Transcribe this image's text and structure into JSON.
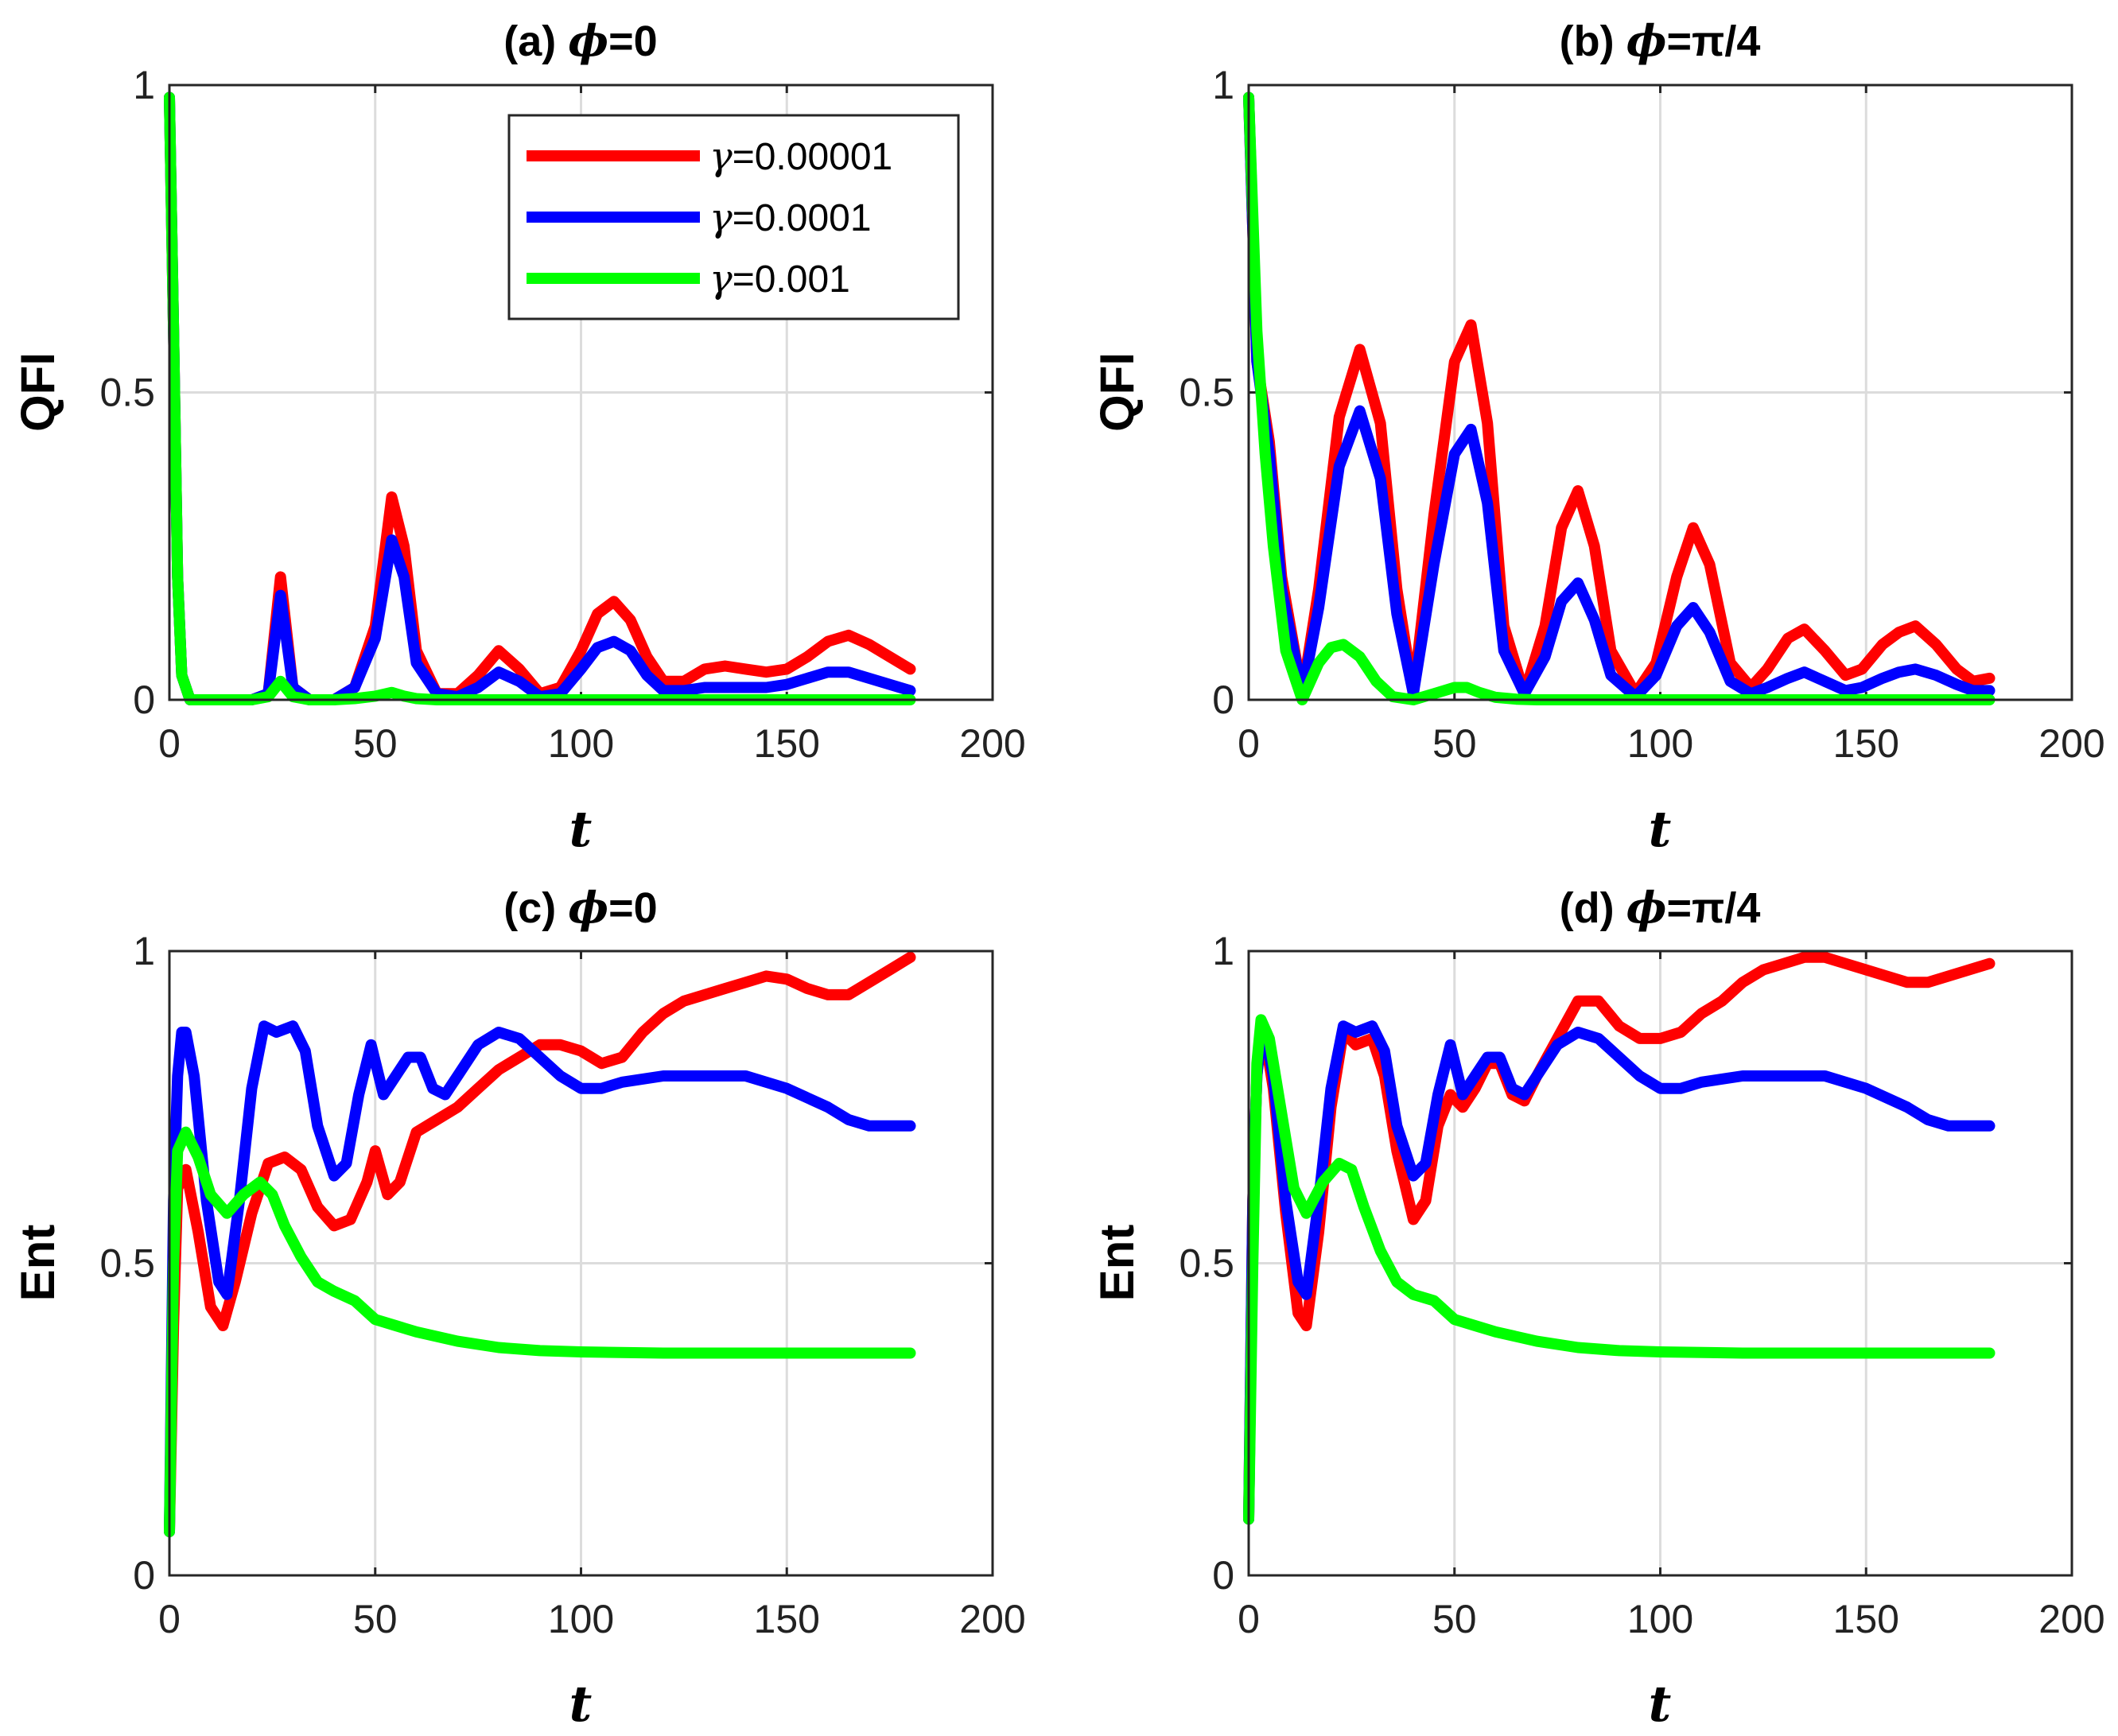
{
  "colors": {
    "red": "#ff0000",
    "blue": "#0000ff",
    "green": "#00ff00",
    "axis": "#262626",
    "grid": "#dcdcdc"
  },
  "legend": {
    "symbol": "γ",
    "entries": [
      "=0.00001",
      "=0.0001",
      "=0.001"
    ],
    "placement": "top-right of panel (a)"
  },
  "chart_data": [
    {
      "type": "line",
      "title_prefix": "(a) ",
      "title_symbol": "ϕ",
      "title_suffix": "=0",
      "xlabel": "t",
      "ylabel": "QFI",
      "xlim": [
        0,
        200
      ],
      "ylim": [
        0,
        1
      ],
      "xticks": [
        "0",
        "50",
        "100",
        "150",
        "200"
      ],
      "yticks": [
        "0",
        "0.5",
        "1"
      ],
      "grid": true,
      "series": [
        {
          "name": "γ=0.00001",
          "color": "red",
          "x": [
            0,
            1,
            2,
            3,
            5,
            10,
            20,
            24,
            27,
            30,
            34,
            40,
            45,
            50,
            54,
            57,
            60,
            65,
            70,
            75,
            80,
            85,
            90,
            95,
            100,
            104,
            108,
            112,
            116,
            120,
            125,
            130,
            135,
            140,
            145,
            150,
            155,
            160,
            165,
            170,
            175,
            180
          ],
          "y": [
            0.98,
            0.6,
            0.2,
            0.04,
            0,
            0,
            0,
            0.01,
            0.2,
            0.02,
            0,
            0,
            0.02,
            0.12,
            0.33,
            0.25,
            0.08,
            0.01,
            0.01,
            0.04,
            0.08,
            0.05,
            0.01,
            0.02,
            0.08,
            0.14,
            0.16,
            0.13,
            0.07,
            0.03,
            0.03,
            0.05,
            0.055,
            0.05,
            0.045,
            0.05,
            0.07,
            0.095,
            0.105,
            0.09,
            0.07,
            0.05
          ]
        },
        {
          "name": "γ=0.0001",
          "color": "blue",
          "x": [
            0,
            1,
            2,
            3,
            5,
            10,
            20,
            24,
            27,
            30,
            34,
            40,
            45,
            50,
            54,
            57,
            60,
            65,
            70,
            75,
            80,
            85,
            90,
            95,
            100,
            104,
            108,
            112,
            116,
            120,
            125,
            130,
            135,
            140,
            145,
            150,
            155,
            160,
            165,
            170,
            175,
            180
          ],
          "y": [
            0.98,
            0.6,
            0.2,
            0.04,
            0,
            0,
            0,
            0.01,
            0.17,
            0.02,
            0,
            0,
            0.02,
            0.1,
            0.26,
            0.2,
            0.06,
            0.01,
            0.005,
            0.02,
            0.045,
            0.03,
            0.005,
            0.01,
            0.05,
            0.085,
            0.095,
            0.08,
            0.04,
            0.015,
            0.015,
            0.02,
            0.02,
            0.02,
            0.02,
            0.025,
            0.035,
            0.045,
            0.045,
            0.035,
            0.025,
            0.015
          ]
        },
        {
          "name": "γ=0.001",
          "color": "green",
          "x": [
            0,
            1,
            2,
            3,
            5,
            10,
            20,
            24,
            27,
            30,
            34,
            40,
            45,
            50,
            54,
            57,
            60,
            65,
            70,
            100,
            150,
            180
          ],
          "y": [
            0.98,
            0.6,
            0.2,
            0.04,
            0,
            0,
            0,
            0.005,
            0.03,
            0.005,
            0,
            0,
            0.002,
            0.006,
            0.012,
            0.006,
            0.002,
            0,
            0,
            0,
            0,
            0
          ]
        }
      ]
    },
    {
      "type": "line",
      "title_prefix": "(b) ",
      "title_symbol": "ϕ",
      "title_suffix": "=π/4",
      "xlabel": "t",
      "ylabel": "QFI",
      "xlim": [
        0,
        200
      ],
      "ylim": [
        0,
        1
      ],
      "xticks": [
        "0",
        "50",
        "100",
        "150",
        "200"
      ],
      "yticks": [
        "0",
        "0.5",
        "1"
      ],
      "grid": true,
      "series": [
        {
          "name": "γ=0.00001",
          "color": "red",
          "x": [
            0,
            2,
            5,
            8,
            13,
            17,
            22,
            27,
            32,
            36,
            40,
            45,
            50,
            54,
            58,
            62,
            67,
            72,
            76,
            80,
            84,
            88,
            94,
            99,
            104,
            108,
            112,
            117,
            122,
            126,
            131,
            135,
            140,
            145,
            149,
            154,
            158,
            162,
            167,
            172,
            176,
            180
          ],
          "y": [
            0.98,
            0.55,
            0.42,
            0.2,
            0.01,
            0.18,
            0.46,
            0.57,
            0.45,
            0.18,
            0.01,
            0.3,
            0.55,
            0.61,
            0.45,
            0.12,
            0.01,
            0.12,
            0.28,
            0.34,
            0.25,
            0.08,
            0.01,
            0.06,
            0.2,
            0.28,
            0.22,
            0.06,
            0.02,
            0.05,
            0.1,
            0.115,
            0.08,
            0.04,
            0.05,
            0.09,
            0.11,
            0.12,
            0.09,
            0.05,
            0.03,
            0.035
          ]
        },
        {
          "name": "γ=0.0001",
          "color": "blue",
          "x": [
            0,
            2,
            5,
            8,
            13,
            17,
            22,
            27,
            32,
            36,
            40,
            45,
            50,
            54,
            58,
            62,
            67,
            72,
            76,
            80,
            84,
            88,
            94,
            99,
            104,
            108,
            112,
            117,
            122,
            126,
            131,
            135,
            140,
            145,
            149,
            154,
            158,
            162,
            167,
            172,
            176,
            180
          ],
          "y": [
            0.98,
            0.55,
            0.4,
            0.18,
            0.01,
            0.15,
            0.38,
            0.47,
            0.36,
            0.14,
            0.01,
            0.22,
            0.4,
            0.44,
            0.32,
            0.08,
            0.01,
            0.07,
            0.16,
            0.19,
            0.13,
            0.04,
            0.005,
            0.04,
            0.12,
            0.15,
            0.11,
            0.03,
            0.01,
            0.02,
            0.035,
            0.045,
            0.03,
            0.015,
            0.02,
            0.035,
            0.045,
            0.05,
            0.04,
            0.025,
            0.015,
            0.015
          ]
        },
        {
          "name": "γ=0.001",
          "color": "green",
          "x": [
            0,
            2,
            4,
            6,
            9,
            13,
            17,
            20,
            23,
            27,
            31,
            35,
            40,
            45,
            50,
            53,
            56,
            60,
            65,
            70,
            100,
            150,
            180
          ],
          "y": [
            0.98,
            0.6,
            0.4,
            0.25,
            0.08,
            0.0,
            0.06,
            0.085,
            0.09,
            0.07,
            0.03,
            0.005,
            0.0,
            0.01,
            0.02,
            0.02,
            0.012,
            0.004,
            0.001,
            0,
            0,
            0,
            0
          ]
        }
      ]
    },
    {
      "type": "line",
      "title_prefix": "(c) ",
      "title_symbol": "ϕ",
      "title_suffix": "=0",
      "xlabel": "t",
      "ylabel": "Ent",
      "xlim": [
        0,
        200
      ],
      "ylim": [
        0,
        1
      ],
      "xticks": [
        "0",
        "50",
        "100",
        "150",
        "200"
      ],
      "yticks": [
        "0",
        "0.5",
        "1"
      ],
      "grid": true,
      "series": [
        {
          "name": "γ=0.00001",
          "color": "red",
          "x": [
            0,
            1,
            2,
            4,
            7,
            10,
            13,
            16,
            20,
            24,
            28,
            32,
            36,
            40,
            44,
            48,
            50,
            53,
            56,
            60,
            65,
            70,
            75,
            80,
            85,
            90,
            95,
            100,
            105,
            110,
            115,
            120,
            125,
            130,
            135,
            140,
            145,
            150,
            155,
            160,
            165,
            170,
            175,
            180
          ],
          "y": [
            0.07,
            0.4,
            0.62,
            0.65,
            0.55,
            0.43,
            0.4,
            0.47,
            0.58,
            0.66,
            0.67,
            0.65,
            0.59,
            0.56,
            0.57,
            0.63,
            0.68,
            0.61,
            0.63,
            0.71,
            0.73,
            0.75,
            0.78,
            0.81,
            0.83,
            0.85,
            0.85,
            0.84,
            0.82,
            0.83,
            0.87,
            0.9,
            0.92,
            0.93,
            0.94,
            0.95,
            0.96,
            0.955,
            0.94,
            0.93,
            0.93,
            0.95,
            0.97,
            0.99
          ]
        },
        {
          "name": "γ=0.0001",
          "color": "blue",
          "x": [
            0,
            1,
            2,
            3,
            4,
            6,
            9,
            12,
            14,
            17,
            20,
            23,
            26,
            30,
            33,
            36,
            40,
            43,
            46,
            49,
            52,
            55,
            58,
            61,
            64,
            67,
            70,
            75,
            80,
            85,
            90,
            95,
            100,
            105,
            110,
            120,
            130,
            140,
            150,
            160,
            165,
            170,
            175,
            180
          ],
          "y": [
            0.07,
            0.6,
            0.8,
            0.87,
            0.87,
            0.8,
            0.6,
            0.47,
            0.45,
            0.6,
            0.78,
            0.88,
            0.87,
            0.88,
            0.84,
            0.72,
            0.64,
            0.66,
            0.77,
            0.85,
            0.77,
            0.8,
            0.83,
            0.83,
            0.78,
            0.77,
            0.8,
            0.85,
            0.87,
            0.86,
            0.83,
            0.8,
            0.78,
            0.78,
            0.79,
            0.8,
            0.8,
            0.8,
            0.78,
            0.75,
            0.73,
            0.72,
            0.72,
            0.72
          ]
        },
        {
          "name": "γ=0.001",
          "color": "green",
          "x": [
            0,
            1,
            2,
            4,
            7,
            10,
            14,
            18,
            22,
            25,
            28,
            32,
            36,
            40,
            45,
            50,
            55,
            60,
            70,
            80,
            90,
            100,
            120,
            150,
            180
          ],
          "y": [
            0.07,
            0.5,
            0.68,
            0.71,
            0.67,
            0.61,
            0.58,
            0.61,
            0.63,
            0.61,
            0.56,
            0.51,
            0.47,
            0.455,
            0.44,
            0.41,
            0.4,
            0.39,
            0.375,
            0.365,
            0.36,
            0.358,
            0.356,
            0.356,
            0.356
          ]
        }
      ]
    },
    {
      "type": "line",
      "title_prefix": "(d) ",
      "title_symbol": "ϕ",
      "title_suffix": "=π/4",
      "xlabel": "t",
      "ylabel": "Ent",
      "xlim": [
        0,
        200
      ],
      "ylim": [
        0,
        1
      ],
      "xticks": [
        "0",
        "50",
        "100",
        "150",
        "200"
      ],
      "yticks": [
        "0",
        "0.5",
        "1"
      ],
      "grid": true,
      "series": [
        {
          "name": "γ=0.00001",
          "color": "red",
          "x": [
            0,
            1,
            2,
            3,
            4,
            6,
            9,
            12,
            14,
            17,
            20,
            23,
            26,
            30,
            33,
            36,
            40,
            43,
            46,
            49,
            52,
            55,
            58,
            61,
            64,
            67,
            70,
            75,
            80,
            85,
            90,
            95,
            100,
            105,
            110,
            115,
            120,
            125,
            130,
            135,
            140,
            145,
            150,
            155,
            160,
            165,
            170,
            175,
            180
          ],
          "y": [
            0.09,
            0.6,
            0.8,
            0.86,
            0.86,
            0.78,
            0.58,
            0.42,
            0.4,
            0.55,
            0.75,
            0.87,
            0.85,
            0.86,
            0.8,
            0.68,
            0.57,
            0.6,
            0.72,
            0.77,
            0.75,
            0.78,
            0.82,
            0.82,
            0.77,
            0.76,
            0.8,
            0.86,
            0.92,
            0.92,
            0.88,
            0.86,
            0.86,
            0.87,
            0.9,
            0.92,
            0.95,
            0.97,
            0.98,
            0.99,
            0.99,
            0.98,
            0.97,
            0.96,
            0.95,
            0.95,
            0.96,
            0.97,
            0.98
          ]
        },
        {
          "name": "γ=0.0001",
          "color": "blue",
          "x": [
            0,
            1,
            2,
            3,
            4,
            6,
            9,
            12,
            14,
            17,
            20,
            23,
            26,
            30,
            33,
            36,
            40,
            43,
            46,
            49,
            52,
            55,
            58,
            61,
            64,
            67,
            70,
            75,
            80,
            85,
            90,
            95,
            100,
            105,
            110,
            120,
            130,
            140,
            150,
            160,
            165,
            170,
            175,
            180
          ],
          "y": [
            0.09,
            0.6,
            0.8,
            0.87,
            0.87,
            0.8,
            0.6,
            0.47,
            0.45,
            0.6,
            0.78,
            0.88,
            0.87,
            0.88,
            0.84,
            0.72,
            0.64,
            0.66,
            0.77,
            0.85,
            0.77,
            0.8,
            0.83,
            0.83,
            0.78,
            0.77,
            0.8,
            0.85,
            0.87,
            0.86,
            0.83,
            0.8,
            0.78,
            0.78,
            0.79,
            0.8,
            0.8,
            0.8,
            0.78,
            0.75,
            0.73,
            0.72,
            0.72,
            0.72
          ]
        },
        {
          "name": "γ=0.001",
          "color": "green",
          "x": [
            0,
            1,
            2,
            3,
            5,
            8,
            11,
            14,
            18,
            22,
            25,
            28,
            32,
            36,
            40,
            45,
            50,
            55,
            60,
            70,
            80,
            90,
            100,
            120,
            150,
            180
          ],
          "y": [
            0.09,
            0.5,
            0.82,
            0.89,
            0.86,
            0.74,
            0.62,
            0.58,
            0.63,
            0.66,
            0.65,
            0.59,
            0.52,
            0.47,
            0.45,
            0.44,
            0.41,
            0.4,
            0.39,
            0.375,
            0.365,
            0.36,
            0.358,
            0.356,
            0.356,
            0.356
          ]
        }
      ]
    }
  ]
}
